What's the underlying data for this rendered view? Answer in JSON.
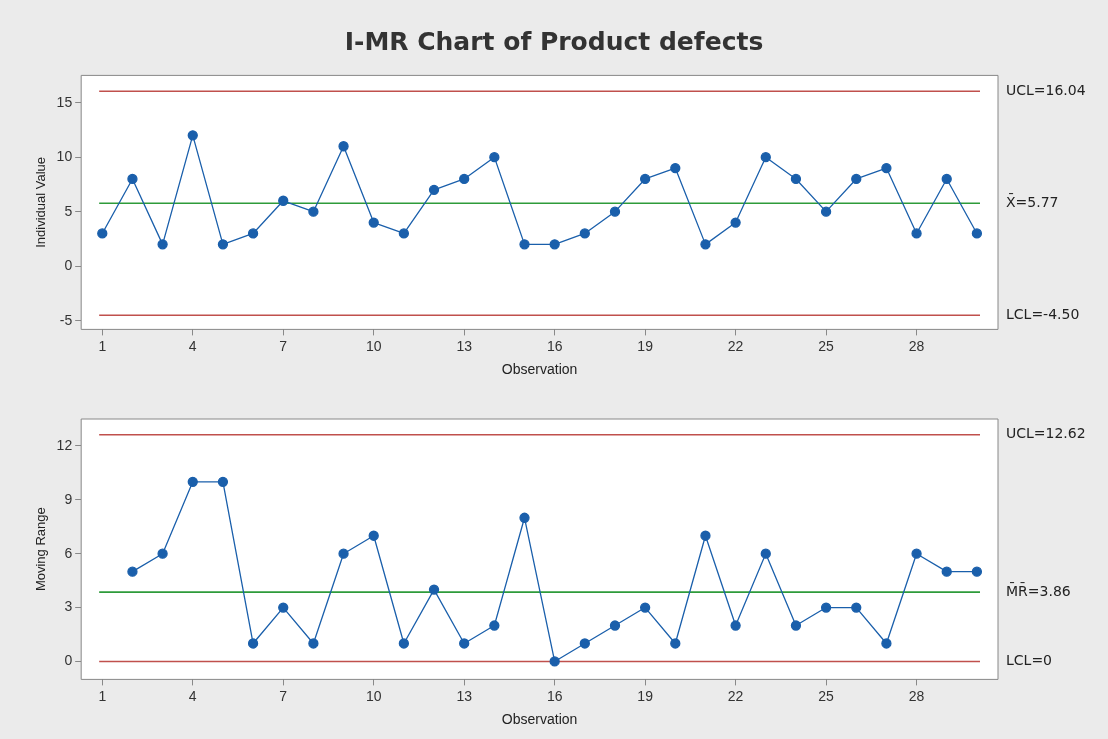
{
  "chart_data": [
    {
      "type": "line",
      "title": "I-MR Chart of Product defects",
      "xlabel": "Observation",
      "ylabel": "Individual Value",
      "x": [
        1,
        2,
        3,
        4,
        5,
        6,
        7,
        8,
        9,
        10,
        11,
        12,
        13,
        14,
        15,
        16,
        17,
        18,
        19,
        20,
        21,
        22,
        23,
        24,
        25,
        26,
        27,
        28,
        29,
        30
      ],
      "series": [
        {
          "color": "#1a5fab",
          "values": [
            3,
            8,
            2,
            12,
            2,
            3,
            6,
            5,
            11,
            4,
            3,
            7,
            8,
            10,
            2,
            2,
            3,
            5,
            8,
            9,
            2,
            4,
            10,
            8,
            5,
            8,
            9,
            3,
            8,
            3
          ]
        }
      ],
      "xlim": [
        0.3,
        30.7
      ],
      "xticks": [
        1,
        4,
        7,
        10,
        13,
        16,
        19,
        22,
        25,
        28
      ],
      "ylim": [
        -5.8,
        17.5
      ],
      "yticks": [
        -5,
        0,
        5,
        10,
        15
      ],
      "ref_lines": [
        {
          "axis": "y",
          "value": 16.04,
          "label": "UCL=16.04",
          "color": "#c0504d"
        },
        {
          "axis": "y",
          "value": 5.77,
          "label": "X̄=5.77",
          "color": "#2e9b3a"
        },
        {
          "axis": "y",
          "value": -4.5,
          "label": "LCL=-4.50",
          "color": "#c0504d"
        }
      ],
      "marker": "circle",
      "grid": false,
      "legend": false
    },
    {
      "type": "line",
      "xlabel": "Observation",
      "ylabel": "Moving Range",
      "series": [
        {
          "color": "#1a5fab",
          "x": [
            2,
            3,
            4,
            5,
            6,
            7,
            8,
            9,
            10,
            11,
            12,
            13,
            14,
            15,
            16,
            17,
            18,
            19,
            20,
            21,
            22,
            23,
            24,
            25,
            26,
            27,
            28,
            29,
            30
          ],
          "values": [
            5,
            6,
            10,
            10,
            1,
            3,
            1,
            6,
            7,
            1,
            4,
            1,
            2,
            8,
            0,
            1,
            2,
            3,
            1,
            7,
            2,
            6,
            2,
            3,
            3,
            1,
            6,
            5,
            5
          ]
        }
      ],
      "xlim": [
        0.3,
        30.7
      ],
      "xticks": [
        1,
        4,
        7,
        10,
        13,
        16,
        19,
        22,
        25,
        28
      ],
      "ylim": [
        -1,
        13.5
      ],
      "yticks": [
        0,
        3,
        6,
        9,
        12
      ],
      "ref_lines": [
        {
          "axis": "y",
          "value": 12.62,
          "label": "UCL=12.62",
          "color": "#c0504d"
        },
        {
          "axis": "y",
          "value": 3.86,
          "label": "M̄R̄=3.86",
          "color": "#2e9b3a"
        },
        {
          "axis": "y",
          "value": 0,
          "label": "LCL=0",
          "color": "#c0504d"
        }
      ],
      "marker": "circle",
      "grid": false,
      "legend": false
    }
  ]
}
